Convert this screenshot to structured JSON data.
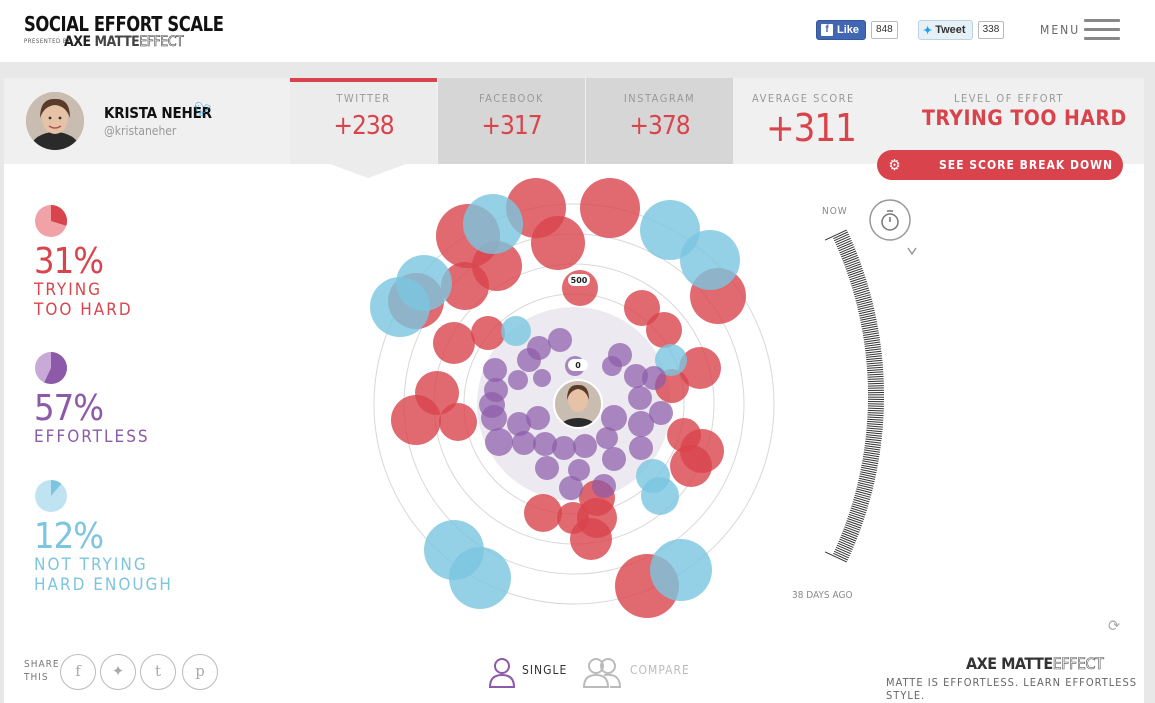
{
  "header": {
    "title": "SOCIAL EFFORT SCALE",
    "presented_by": "PRESENTED BY",
    "brand_axe": "AXE",
    "brand_matte": "MATTE",
    "brand_effect": "EFFECT",
    "fb_like_label": "Like",
    "fb_like_count": "848",
    "tweet_label": "Tweet",
    "tweet_count": "338",
    "menu_label": "MENU"
  },
  "profile": {
    "name": "KRISTA NEHER",
    "handle": "@kristaneher"
  },
  "tabs": [
    {
      "label": "TWITTER",
      "value": "+238",
      "active": true
    },
    {
      "label": "FACEBOOK",
      "value": "+317",
      "active": false
    },
    {
      "label": "INSTAGRAM",
      "value": "+378",
      "active": false
    }
  ],
  "average": {
    "label": "AVERAGE SCORE",
    "value": "+311"
  },
  "effort": {
    "label": "LEVEL OF EFFORT",
    "value": "TRYING TOO HARD"
  },
  "breakdown_button": "SEE SCORE BREAK DOWN",
  "legend": [
    {
      "percent": "31%",
      "line1": "TRYING",
      "line2": "TOO HARD",
      "fraction": 0.31,
      "color": "#d9444c"
    },
    {
      "percent": "57%",
      "line1": "EFFORTLESS",
      "line2": "",
      "fraction": 0.57,
      "color": "#8c5aa8"
    },
    {
      "percent": "12%",
      "line1": "NOT TRYING",
      "line2": "HARD ENOUGH",
      "fraction": 0.12,
      "color": "#7bc5e0"
    }
  ],
  "scale": {
    "top_value": "500",
    "center_value": "0"
  },
  "timeline": {
    "now_label": "NOW",
    "ago_label": "38 DAYS AGO"
  },
  "share": {
    "label_line1": "SHARE",
    "label_line2": "THIS"
  },
  "modes": {
    "single": "SINGLE",
    "compare": "COMPARE"
  },
  "footer": {
    "brand_axe": "AXE",
    "brand_matte": "MATTE",
    "brand_effect": "EFFECT",
    "tagline": "MATTE IS EFFORTLESS. LEARN EFFORTLESS STYLE."
  },
  "colors": {
    "red": "#d9444c",
    "purple": "#8c5aa8",
    "blue": "#7bc5e0"
  },
  "icons": [
    "facebook-icon",
    "twitter-icon",
    "tumblr-icon",
    "pinterest-icon",
    "gear-icon",
    "stopwatch-icon",
    "refresh-icon",
    "single-user-icon",
    "compare-users-icon",
    "hamburger-icon"
  ]
}
